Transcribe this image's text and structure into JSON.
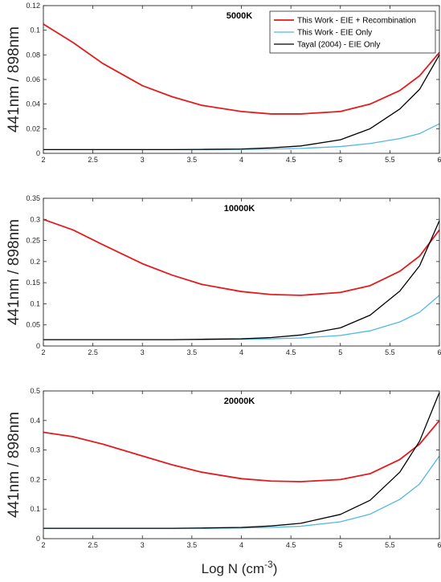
{
  "figure": {
    "xlabel_base": "Log N (cm",
    "xlabel_sup": "-3",
    "xlabel_end": ")"
  },
  "legend": {
    "entries": [
      {
        "label": "This Work - EIE + Recombination",
        "color": "#e41a1c"
      },
      {
        "label": "This Work - EIE Only",
        "color": "#4fb9e3"
      },
      {
        "label": "Tayal (2004) - EIE Only",
        "color": "#000000"
      }
    ]
  },
  "chart_data": [
    {
      "type": "line",
      "title": "5000K",
      "ylabel": "441nm / 898nm",
      "xlim": [
        2,
        6
      ],
      "ylim": [
        0,
        0.12
      ],
      "xticks": [
        "2",
        "2.5",
        "3",
        "3.5",
        "4",
        "4.5",
        "5",
        "5.5",
        "6"
      ],
      "yticks": [
        "0",
        "0.02",
        "0.04",
        "0.06",
        "0.08",
        "0.1",
        "0.12"
      ],
      "x": [
        2,
        2.3,
        2.6,
        3,
        3.3,
        3.6,
        4,
        4.3,
        4.6,
        5,
        5.3,
        5.6,
        5.8,
        6
      ],
      "series": [
        {
          "name": "This Work - EIE + Recombination",
          "color": "#e41a1c",
          "values": [
            0.105,
            0.09,
            0.073,
            0.055,
            0.046,
            0.039,
            0.034,
            0.032,
            0.032,
            0.034,
            0.04,
            0.051,
            0.063,
            0.082
          ]
        },
        {
          "name": "This Work - EIE Only",
          "color": "#4fb9e3",
          "values": [
            0.003,
            0.003,
            0.003,
            0.003,
            0.003,
            0.003,
            0.0032,
            0.0035,
            0.004,
            0.0055,
            0.008,
            0.012,
            0.016,
            0.024
          ]
        },
        {
          "name": "Tayal (2004) - EIE Only",
          "color": "#000000",
          "values": [
            0.003,
            0.003,
            0.003,
            0.003,
            0.003,
            0.0032,
            0.0035,
            0.0045,
            0.006,
            0.011,
            0.02,
            0.036,
            0.052,
            0.08
          ]
        }
      ]
    },
    {
      "type": "line",
      "title": "10000K",
      "ylabel": "441nm / 898nm",
      "xlim": [
        2,
        6
      ],
      "ylim": [
        0,
        0.35
      ],
      "xticks": [
        "2",
        "2.5",
        "3",
        "3.5",
        "4",
        "4.5",
        "5",
        "5.5",
        "6"
      ],
      "yticks": [
        "0",
        "0.05",
        "0.1",
        "0.15",
        "0.2",
        "0.25",
        "0.3",
        "0.35"
      ],
      "x": [
        2,
        2.3,
        2.6,
        3,
        3.3,
        3.6,
        4,
        4.3,
        4.6,
        5,
        5.3,
        5.6,
        5.8,
        6
      ],
      "series": [
        {
          "name": "This Work - EIE + Recombination",
          "color": "#e41a1c",
          "values": [
            0.3,
            0.275,
            0.24,
            0.195,
            0.168,
            0.146,
            0.129,
            0.122,
            0.12,
            0.127,
            0.143,
            0.177,
            0.213,
            0.275
          ]
        },
        {
          "name": "This Work - EIE Only",
          "color": "#4fb9e3",
          "values": [
            0.015,
            0.015,
            0.015,
            0.015,
            0.015,
            0.015,
            0.016,
            0.017,
            0.019,
            0.025,
            0.036,
            0.057,
            0.08,
            0.12
          ]
        },
        {
          "name": "Tayal (2004) - EIE Only",
          "color": "#000000",
          "values": [
            0.015,
            0.015,
            0.015,
            0.015,
            0.015,
            0.016,
            0.017,
            0.02,
            0.026,
            0.043,
            0.073,
            0.13,
            0.19,
            0.297
          ]
        }
      ]
    },
    {
      "type": "line",
      "title": "20000K",
      "ylabel": "441nm / 898nm",
      "xlim": [
        2,
        6
      ],
      "ylim": [
        0,
        0.5
      ],
      "xticks": [
        "2",
        "2.5",
        "3",
        "3.5",
        "4",
        "4.5",
        "5",
        "5.5",
        "6"
      ],
      "yticks": [
        "0",
        "0.1",
        "0.2",
        "0.3",
        "0.4",
        "0.5"
      ],
      "x": [
        2,
        2.3,
        2.6,
        3,
        3.3,
        3.6,
        4,
        4.3,
        4.6,
        5,
        5.3,
        5.6,
        5.8,
        6
      ],
      "series": [
        {
          "name": "This Work - EIE + Recombination",
          "color": "#e41a1c",
          "values": [
            0.36,
            0.345,
            0.32,
            0.28,
            0.25,
            0.225,
            0.203,
            0.195,
            0.193,
            0.2,
            0.22,
            0.268,
            0.32,
            0.4
          ]
        },
        {
          "name": "This Work - EIE Only",
          "color": "#4fb9e3",
          "values": [
            0.035,
            0.035,
            0.035,
            0.035,
            0.035,
            0.035,
            0.036,
            0.038,
            0.042,
            0.057,
            0.083,
            0.133,
            0.185,
            0.28
          ]
        },
        {
          "name": "Tayal (2004) - EIE Only",
          "color": "#000000",
          "values": [
            0.035,
            0.035,
            0.035,
            0.035,
            0.035,
            0.036,
            0.038,
            0.043,
            0.052,
            0.082,
            0.13,
            0.225,
            0.33,
            0.495
          ]
        }
      ]
    }
  ]
}
